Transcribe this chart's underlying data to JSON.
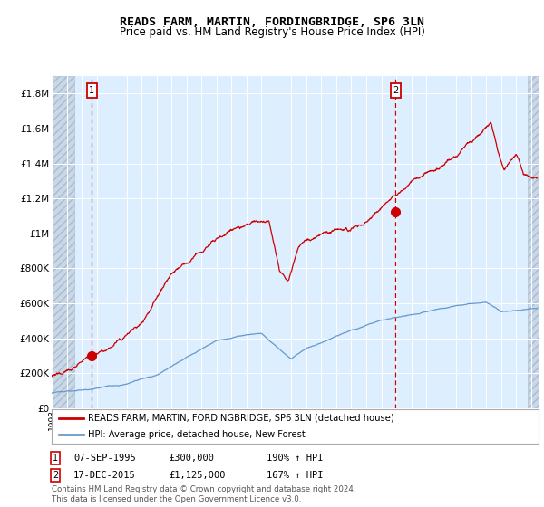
{
  "title": "READS FARM, MARTIN, FORDINGBRIDGE, SP6 3LN",
  "subtitle": "Price paid vs. HM Land Registry's House Price Index (HPI)",
  "footnote": "Contains HM Land Registry data © Crown copyright and database right 2024.\nThis data is licensed under the Open Government Licence v3.0.",
  "legend_line1": "READS FARM, MARTIN, FORDINGBRIDGE, SP6 3LN (detached house)",
  "legend_line2": "HPI: Average price, detached house, New Forest",
  "annotation1_date": "07-SEP-1995",
  "annotation1_price": "£300,000",
  "annotation1_hpi": "190% ↑ HPI",
  "annotation2_date": "17-DEC-2015",
  "annotation2_price": "£1,125,000",
  "annotation2_hpi": "167% ↑ HPI",
  "xmin": 1993.0,
  "xmax": 2025.5,
  "ymin": 0,
  "ymax": 1900000,
  "yticks": [
    0,
    200000,
    400000,
    600000,
    800000,
    1000000,
    1200000,
    1400000,
    1600000,
    1800000
  ],
  "ylabels": [
    "£0",
    "£200K",
    "£400K",
    "£600K",
    "£800K",
    "£1M",
    "£1.2M",
    "£1.4M",
    "£1.6M",
    "£1.8M"
  ],
  "red_line_color": "#cc0000",
  "blue_line_color": "#6699cc",
  "bg_color": "#ddeeff",
  "hatch_color": "#c8d8e8",
  "grid_color": "#ffffff",
  "point1_x": 1995.69,
  "point1_y": 300000,
  "point2_x": 2015.96,
  "point2_y": 1125000,
  "hatch_left_end": 1994.5,
  "hatch_right_start": 2024.75
}
